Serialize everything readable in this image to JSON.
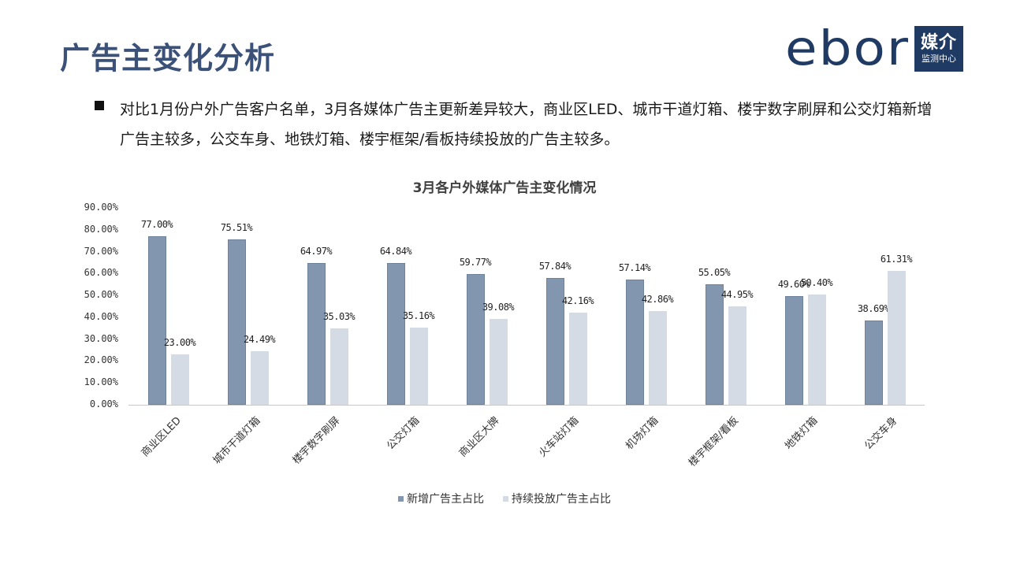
{
  "header": {
    "title": "广告主变化分析",
    "logo": {
      "word": "ebor",
      "box_big": "媒介",
      "box_small": "监测中心"
    }
  },
  "bullet": {
    "text": "对比1月份户外广告客户名单，3月各媒体广告主更新差异较大，商业区LED、城市干道灯箱、楼宇数字刷屏和公交灯箱新增广告主较多，公交车身、地铁灯箱、楼宇框架/看板持续投放的广告主较多。"
  },
  "colors": {
    "title": "#3b5178",
    "series_new": "#8296b0",
    "series_cont": "#d5dbe4",
    "logo": "#1f3a63"
  },
  "chart_data": {
    "type": "bar",
    "title": "3月各户外媒体广告主变化情况",
    "xlabel": "",
    "ylabel": "",
    "ylim": [
      0,
      90
    ],
    "y_ticks": [
      "0.00%",
      "10.00%",
      "20.00%",
      "30.00%",
      "40.00%",
      "50.00%",
      "60.00%",
      "70.00%",
      "80.00%",
      "90.00%"
    ],
    "grid": false,
    "legend_position": "bottom",
    "categories": [
      "商业区LED",
      "城市干道灯箱",
      "楼宇数字刷屏",
      "公交灯箱",
      "商业区大牌",
      "火车站灯箱",
      "机场灯箱",
      "楼宇框架/看板",
      "地铁灯箱",
      "公交车身"
    ],
    "series": [
      {
        "name": "新增广告主占比",
        "values": [
          77.0,
          75.51,
          64.97,
          64.84,
          59.77,
          57.84,
          57.14,
          55.05,
          49.6,
          38.69
        ],
        "labels": [
          "77.00%",
          "75.51%",
          "64.97%",
          "64.84%",
          "59.77%",
          "57.84%",
          "57.14%",
          "55.05%",
          "49.60%",
          "38.69%"
        ]
      },
      {
        "name": "持续投放广告主占比",
        "values": [
          23.0,
          24.49,
          35.03,
          35.16,
          39.08,
          42.16,
          42.86,
          44.95,
          50.4,
          61.31
        ],
        "labels": [
          "23.00%",
          "24.49%",
          "35.03%",
          "35.16%",
          "39.08%",
          "42.16%",
          "42.86%",
          "44.95%",
          "50.40%",
          "61.31%"
        ]
      }
    ]
  }
}
